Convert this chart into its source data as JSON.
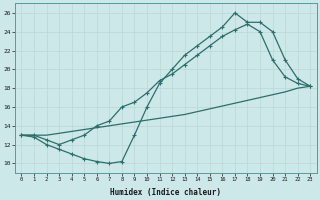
{
  "xlabel": "Humidex (Indice chaleur)",
  "ylabel": "",
  "xlim": [
    -0.5,
    23.5
  ],
  "ylim": [
    9,
    27
  ],
  "yticks": [
    10,
    12,
    14,
    16,
    18,
    20,
    22,
    24,
    26
  ],
  "xticks": [
    0,
    1,
    2,
    3,
    4,
    5,
    6,
    7,
    8,
    9,
    10,
    11,
    12,
    13,
    14,
    15,
    16,
    17,
    18,
    19,
    20,
    21,
    22,
    23
  ],
  "bg_color": "#cce8e8",
  "line_color": "#2e6e6a",
  "line1_x": [
    0,
    1,
    2,
    3,
    4,
    5,
    6,
    7,
    8,
    9,
    10,
    11,
    12,
    13,
    14,
    15,
    16,
    17,
    18,
    19,
    20,
    21,
    22,
    23
  ],
  "line1_y": [
    13.0,
    13.0,
    13.0,
    13.2,
    13.4,
    13.6,
    13.8,
    14.0,
    14.2,
    14.4,
    14.6,
    14.8,
    15.0,
    15.2,
    15.5,
    15.8,
    16.1,
    16.4,
    16.7,
    17.0,
    17.3,
    17.6,
    18.0,
    18.2
  ],
  "line2_x": [
    0,
    1,
    2,
    3,
    4,
    5,
    6,
    7,
    8,
    9,
    10,
    11,
    12,
    13,
    14,
    15,
    16,
    17,
    18,
    19,
    20,
    21,
    22,
    23
  ],
  "line2_y": [
    13.0,
    12.8,
    12.0,
    11.5,
    11.0,
    10.5,
    10.2,
    10.0,
    10.2,
    13.0,
    16.0,
    18.5,
    20.0,
    21.5,
    22.5,
    23.5,
    24.5,
    26.0,
    25.0,
    25.0,
    24.0,
    21.0,
    19.0,
    18.2
  ],
  "line3_x": [
    0,
    1,
    2,
    3,
    4,
    5,
    6,
    7,
    8,
    9,
    10,
    11,
    12,
    13,
    14,
    15,
    16,
    17,
    18,
    19,
    20,
    21,
    22,
    23
  ],
  "line3_y": [
    13.0,
    13.0,
    12.5,
    12.0,
    12.5,
    13.0,
    14.0,
    14.5,
    16.0,
    16.5,
    17.5,
    18.8,
    19.5,
    20.5,
    21.5,
    22.5,
    23.5,
    24.2,
    24.8,
    24.0,
    21.0,
    19.2,
    18.5,
    18.2
  ]
}
